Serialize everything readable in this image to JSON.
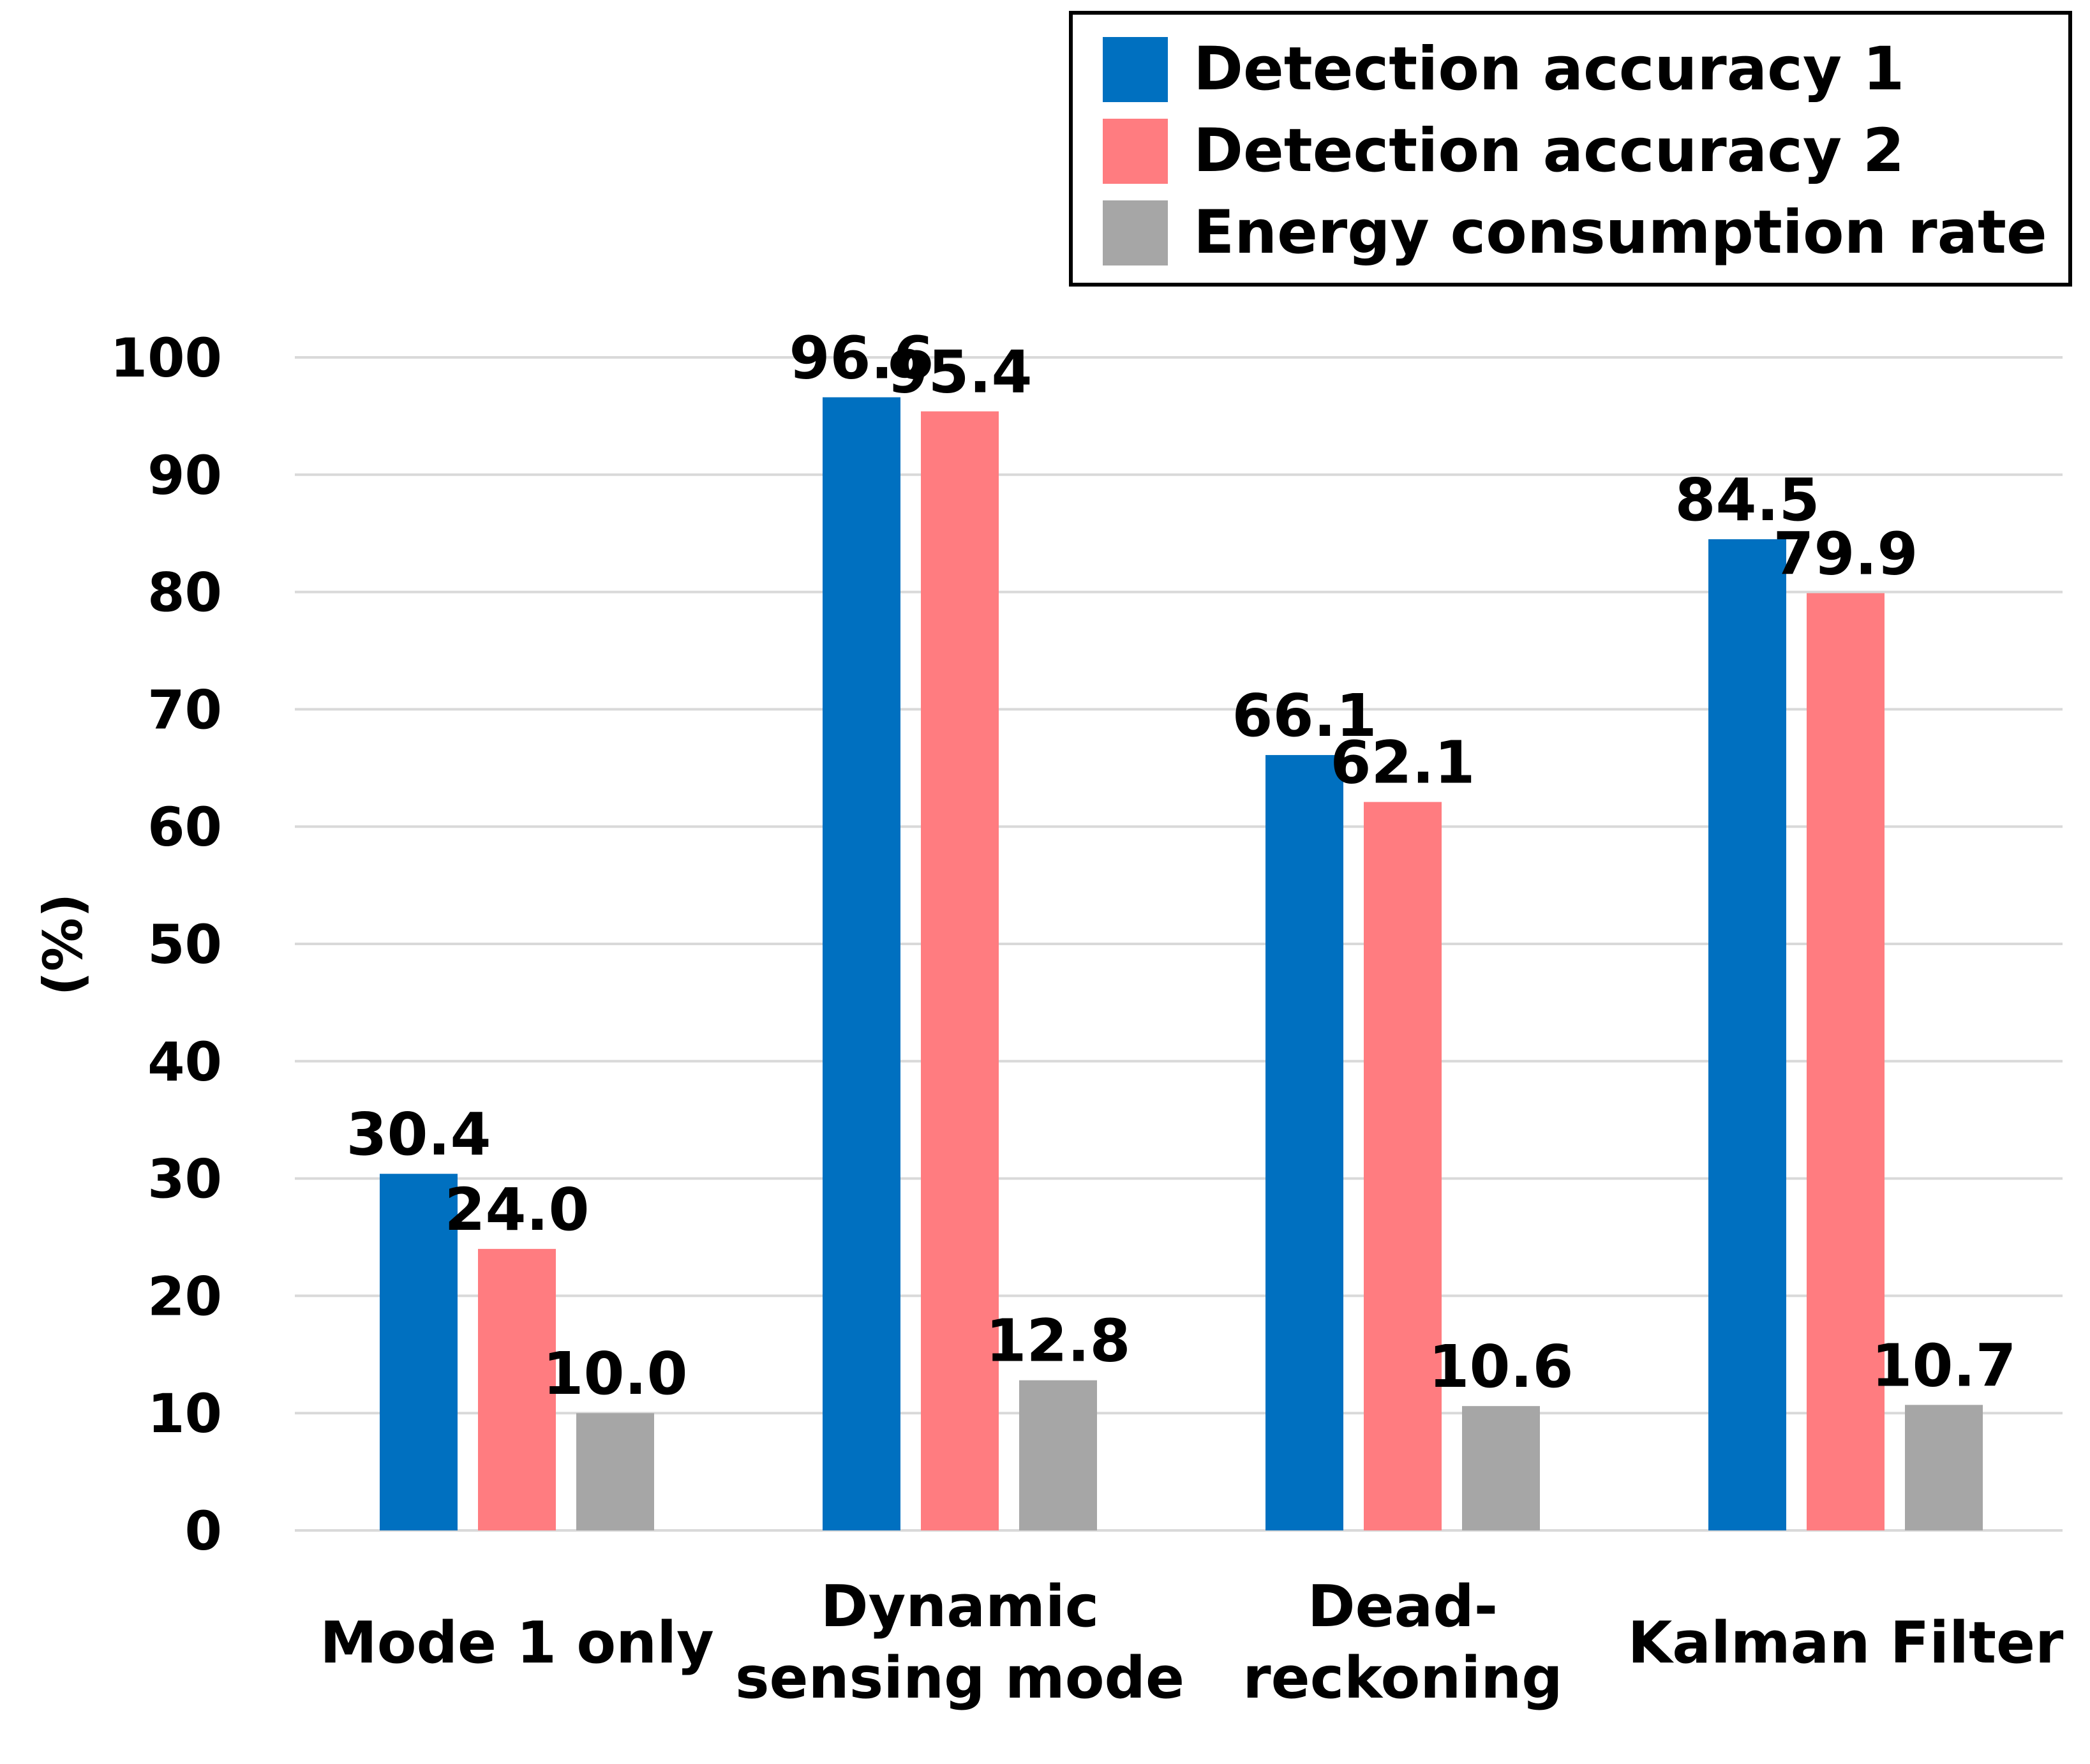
{
  "chart_data": {
    "type": "bar",
    "title": "",
    "xlabel": "",
    "ylabel": "(%)",
    "ylim": [
      0,
      100
    ],
    "yticks": [
      0,
      10,
      20,
      30,
      40,
      50,
      60,
      70,
      80,
      90,
      100
    ],
    "grid": true,
    "legend_position": "top-right",
    "categories": [
      [
        "Mode 1 only"
      ],
      [
        "Dynamic",
        "sensing mode"
      ],
      [
        "Dead-",
        "reckoning"
      ],
      [
        "Kalman Filter"
      ]
    ],
    "series": [
      {
        "name": "Detection accuracy 1",
        "color": "#0070C0",
        "values": [
          30.4,
          96.6,
          66.1,
          84.5
        ]
      },
      {
        "name": "Detection accuracy 2",
        "color": "#FF7C80",
        "values": [
          24.0,
          95.4,
          62.1,
          79.9
        ]
      },
      {
        "name": "Energy consumption rate",
        "color": "#A6A6A6",
        "values": [
          10.0,
          12.8,
          10.6,
          10.7
        ]
      }
    ],
    "data_labels": [
      [
        "30.4",
        "96.6",
        "66.1",
        "84.5"
      ],
      [
        "24.0",
        "95.4",
        "62.1",
        "79.9"
      ],
      [
        "10.0",
        "12.8",
        "10.6",
        "10.7"
      ]
    ]
  }
}
